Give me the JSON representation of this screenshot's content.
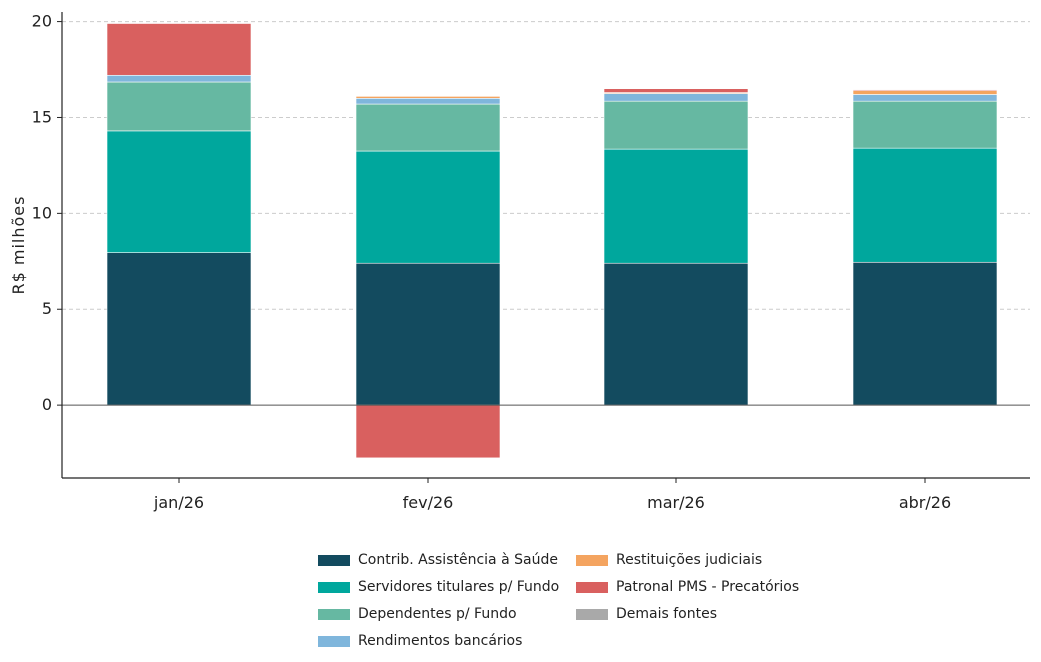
{
  "chart_data": {
    "type": "bar",
    "stacked": true,
    "categories": [
      "jan/26",
      "fev/26",
      "mar/26",
      "abr/26"
    ],
    "ylabel": "R$ milhões",
    "ylim": [
      -3.8,
      20.5
    ],
    "yticks": [
      0,
      5,
      10,
      15,
      20
    ],
    "grid": true,
    "legend_position": "bottom",
    "series": [
      {
        "name": "Contrib. Assistência à Saúde",
        "color": "#134b5f",
        "values": [
          7.95,
          7.4,
          7.4,
          7.45
        ]
      },
      {
        "name": "Servidores titulares p/ Fundo",
        "color": "#00a79d",
        "values": [
          6.35,
          5.85,
          5.95,
          5.95
        ]
      },
      {
        "name": "Dependentes p/ Fundo",
        "color": "#66b8a2",
        "values": [
          2.55,
          2.45,
          2.5,
          2.45
        ]
      },
      {
        "name": "Rendimentos bancários",
        "color": "#7fb6dc",
        "values": [
          0.35,
          0.3,
          0.4,
          0.35
        ]
      },
      {
        "name": "Restituições judiciais",
        "color": "#f4a460",
        "values": [
          0.0,
          0.1,
          0.05,
          0.2
        ]
      },
      {
        "name": "Patronal PMS - Precatórios",
        "color": "#d9605f",
        "values": [
          2.7,
          -2.75,
          0.2,
          0.05
        ]
      },
      {
        "name": "Demais fontes",
        "color": "#a9a9a9",
        "values": [
          0.0,
          0.0,
          0.0,
          0.0
        ]
      }
    ]
  }
}
